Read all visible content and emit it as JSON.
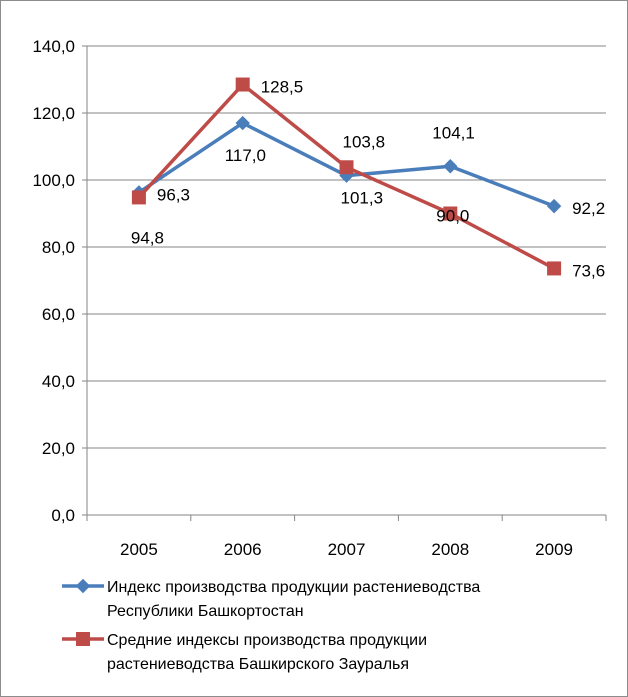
{
  "chart_data": {
    "type": "line",
    "categories": [
      "2005",
      "2006",
      "2007",
      "2008",
      "2009"
    ],
    "ylim": [
      0,
      140
    ],
    "yticks": [
      "0,0",
      "20,0",
      "40,0",
      "60,0",
      "80,0",
      "100,0",
      "120,0",
      "140,0"
    ],
    "grid": true,
    "legend_position": "bottom",
    "series": [
      {
        "name": "Индекс производства продукции растениеводства Республики Башкортостан",
        "legend_lines": [
          "Индекс производства продукции растениеводства",
          "Республики Башкортостан"
        ],
        "color": "#4a7ebb",
        "marker": "diamond",
        "values": [
          96.3,
          117.0,
          101.3,
          104.1,
          92.2
        ],
        "labels": [
          "96,3",
          "117,0",
          "101,3",
          "104,1",
          "92,2"
        ]
      },
      {
        "name": "Средние индексы производства продукции растениеводства Башкирского Зауралья",
        "legend_lines": [
          "Средние индексы производства продукции",
          "растениеводства Башкирского Зауралья"
        ],
        "color": "#be4b48",
        "marker": "square",
        "values": [
          94.8,
          128.5,
          103.8,
          90.0,
          73.6
        ],
        "labels": [
          "94,8",
          "128,5",
          "103,8",
          "90,0",
          "73,6"
        ]
      }
    ]
  }
}
